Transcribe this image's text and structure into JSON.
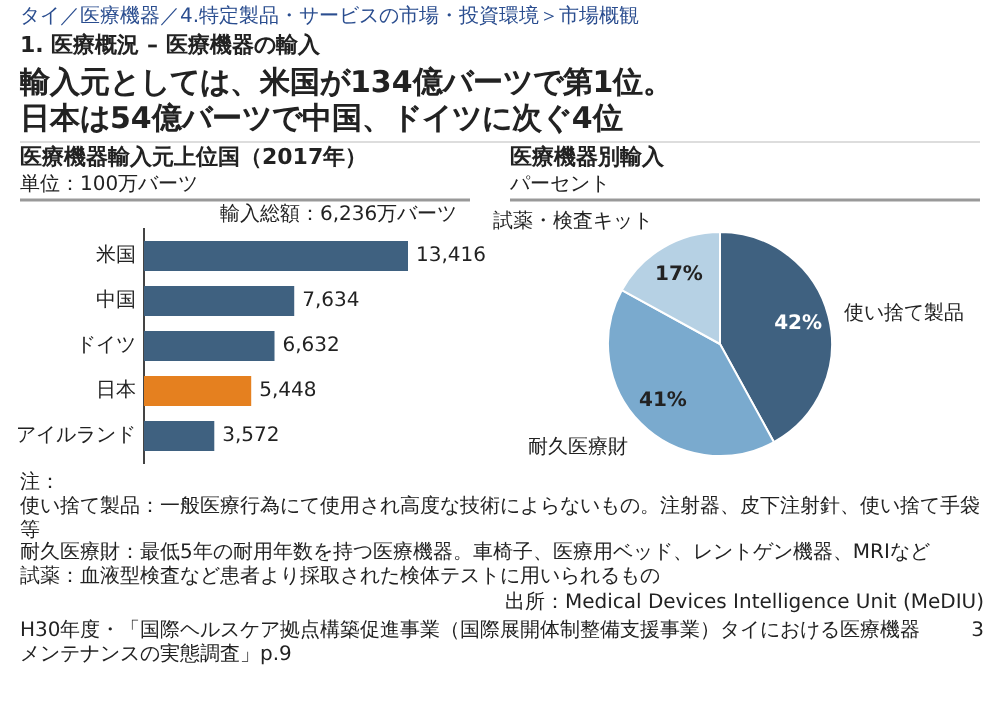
{
  "chart_data": [
    {
      "type": "bar",
      "orientation": "horizontal",
      "title": "医療機器輸入元上位国（2017年）",
      "subtitle": "単位：100万バーツ",
      "categories": [
        "米国",
        "中国",
        "ドイツ",
        "日本",
        "アイルランド"
      ],
      "values": [
        13416,
        7634,
        6632,
        5448,
        3572
      ],
      "colors": [
        "#3f6180",
        "#3f6180",
        "#3f6180",
        "#e5801f",
        "#3f6180"
      ],
      "value_labels": [
        "13,416",
        "7,634",
        "6,632",
        "5,448",
        "3,572"
      ],
      "annotations": [
        "タイ／医療機器／4.特定製品・サービスの市場・投資環境＞市場概観",
        "1. 医療概況 – 医療機器の輸入",
        "輸入元としては、米国が134億バーツで第1位。",
        "日本は54億バーツで中国、ドイツに次ぐ4位",
        "輸入総額：6,236万バーツ"
      ]
    },
    {
      "type": "pie",
      "title": "医療機器別輸入",
      "subtitle": "パーセント",
      "categories": [
        "使い捨て製品",
        "耐久医療財",
        "試薬・検査キット"
      ],
      "values": [
        42,
        41,
        17
      ],
      "colors": [
        "#3f6180",
        "#7aaace",
        "#b6d1e4"
      ],
      "value_labels": [
        "42%",
        "41%",
        "17%"
      ],
      "annotations": [
        "注：",
        "使い捨て製品：一般医療行為にて使用され高度な技術によらないもの。注射器、皮下注射針、使い捨て手袋等",
        "耐久医療財：最低5年の耐用年数を持つ医療機器。車椅子、医療用ベッド、レントゲン機器、MRIなど",
        "試薬：血液型検査など患者より採取された検体テストに用いられるもの",
        "出所：Medical Devices Intelligence Unit (MeDIU)",
        "H30年度・「国際ヘルスケア拠点構築促進事業（国際展開体制整備支援事業）タイにおける医療機器メンテナンスの実態調査」p.9",
        "3"
      ]
    }
  ]
}
